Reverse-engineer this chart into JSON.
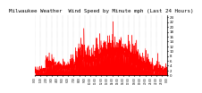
{
  "title": "Milwaukee Weather  Wind Speed by Minute mph (Last 24 Hours)",
  "title_fontsize": 4.2,
  "background_color": "#ffffff",
  "plot_bg_color": "#ffffff",
  "line_color": "#ff0000",
  "fill_color": "#ff0000",
  "grid_color": "#aaaaaa",
  "y_ticks": [
    0,
    2,
    4,
    6,
    8,
    10,
    12,
    14,
    16,
    18,
    20,
    22,
    24
  ],
  "ylim": [
    0,
    25
  ],
  "num_points": 1440,
  "seed": 42
}
